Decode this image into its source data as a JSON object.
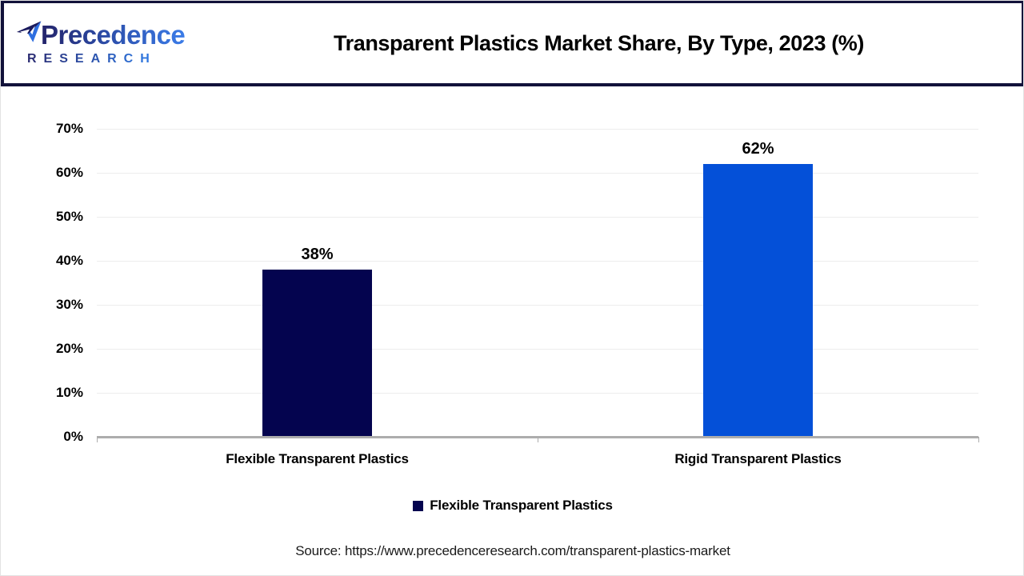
{
  "header": {
    "logo": {
      "brand": "Precedence",
      "sub": "RESEARCH"
    },
    "title": "Transparent Plastics Market Share, By Type, 2023 (%)"
  },
  "chart_data": {
    "type": "bar",
    "title": "Transparent Plastics Market Share, By Type, 2023 (%)",
    "categories": [
      "Flexible Transparent Plastics",
      "Rigid Transparent Plastics"
    ],
    "values": [
      38,
      62
    ],
    "value_labels": [
      "38%",
      "62%"
    ],
    "bar_colors": [
      "#04044f",
      "#0450d8"
    ],
    "xlabel": "",
    "ylabel": "",
    "ylim": [
      0,
      70
    ],
    "ytick_step": 10,
    "ytick_labels": [
      "0%",
      "10%",
      "20%",
      "30%",
      "40%",
      "50%",
      "60%",
      "70%"
    ],
    "grid": true,
    "legend": {
      "position": "bottom",
      "entries": [
        {
          "label": "Flexible Transparent Plastics",
          "color": "#04044f"
        }
      ]
    }
  },
  "source": {
    "text": "Source: https://www.precedenceresearch.com/transparent-plastics-market"
  },
  "colors": {
    "bar_navy": "#04044f",
    "bar_blue": "#0450d8",
    "header_border": "#12123a",
    "axis_line": "#adadad",
    "gridline": "#ececec"
  }
}
